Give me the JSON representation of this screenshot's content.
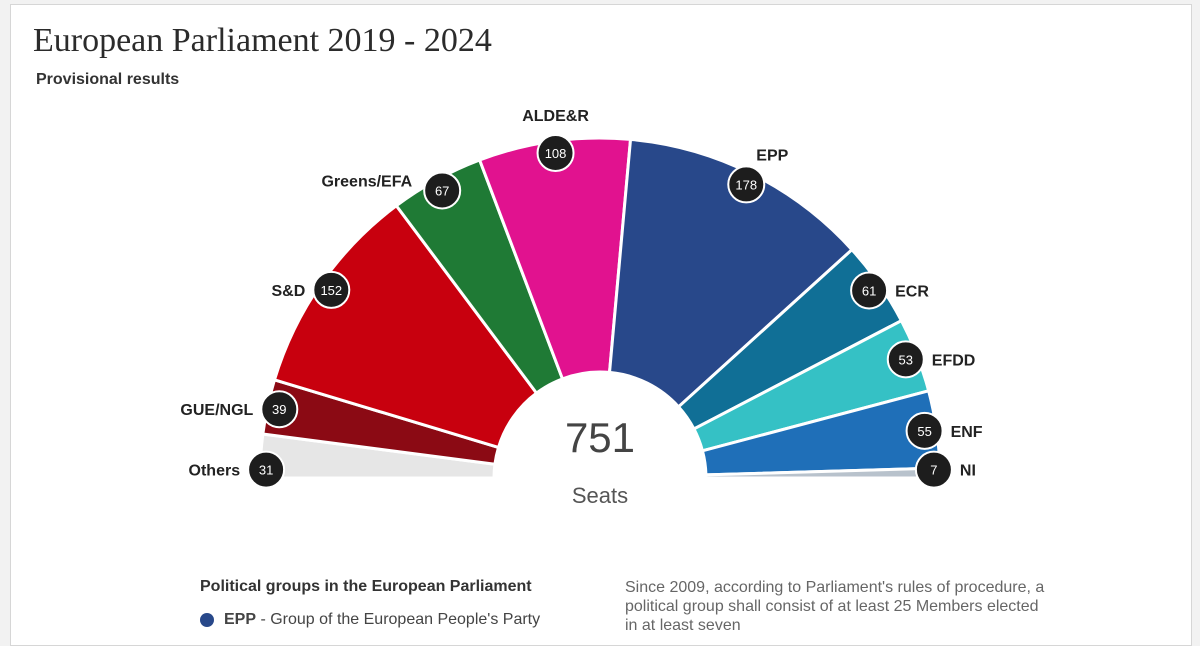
{
  "header": {
    "title": "European Parliament 2019 - 2024",
    "subtitle": "Provisional results"
  },
  "center": {
    "total": "751",
    "unit": "Seats"
  },
  "legend": {
    "title": "Political groups in the European Parliament",
    "first_abbr": "EPP",
    "first_desc": " - Group of the European People's Party",
    "first_color": "#28488a"
  },
  "note": "Since 2009, according to Parliament's rules of procedure, a political group shall consist of at least 25 Members elected in at least seven",
  "chart_data": {
    "type": "pie",
    "style": "hemicycle",
    "total": 751,
    "categories": [
      "Others",
      "GUE/NGL",
      "S&D",
      "Greens/EFA",
      "ALDE&R",
      "EPP",
      "ECR",
      "EFDD",
      "ENF",
      "NI"
    ],
    "values": [
      31,
      39,
      152,
      67,
      108,
      178,
      61,
      53,
      55,
      7
    ],
    "colors": [
      "#e6e6e6",
      "#8b0a14",
      "#c8000e",
      "#1f7a35",
      "#e1128f",
      "#28488a",
      "#106f96",
      "#35c1c5",
      "#1f6fb8",
      "#b8c2cc"
    ]
  }
}
